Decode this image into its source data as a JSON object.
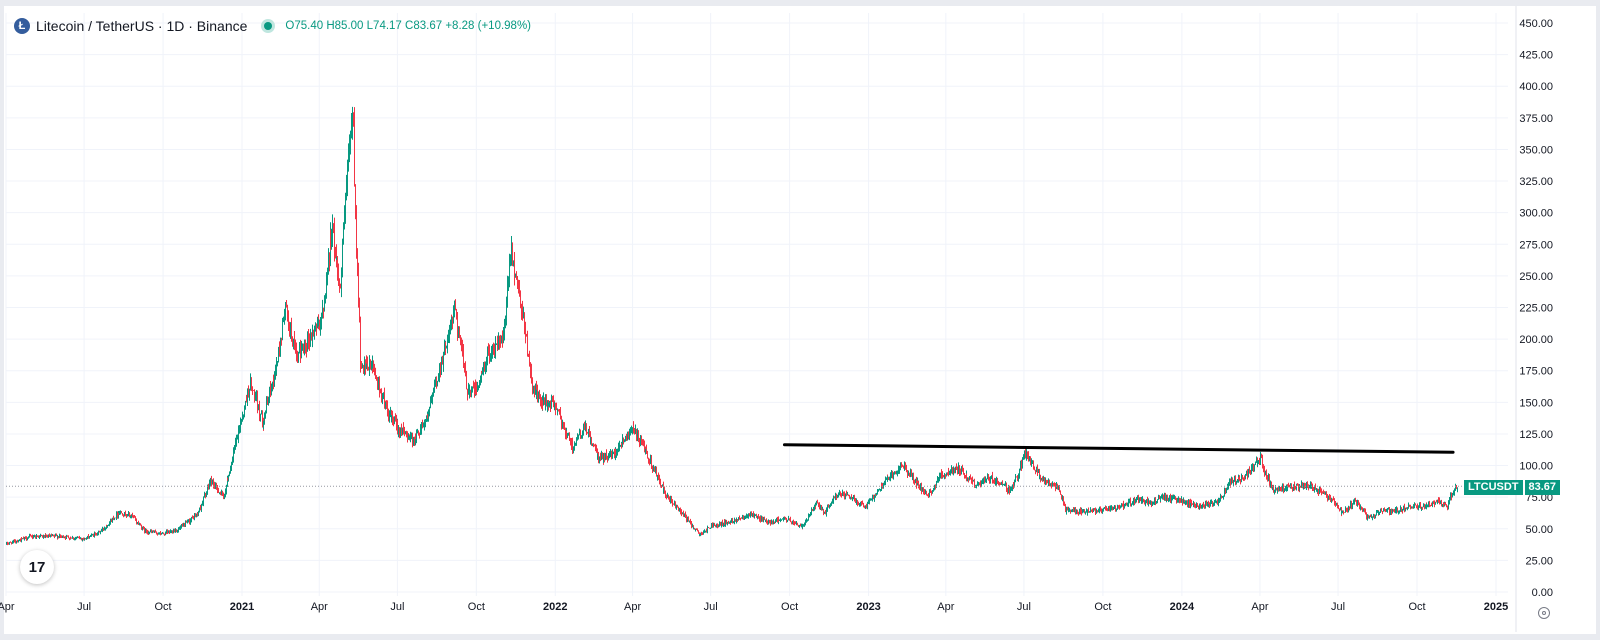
{
  "legend": {
    "symbol": "Litecoin / TetherUS · 1D · Binance",
    "logo_letter": "Ł",
    "ohlc": {
      "o_label": "O",
      "o": "75.40",
      "h_label": "H",
      "h": "85.00",
      "l_label": "L",
      "l": "74.17",
      "c_label": "C",
      "c": "83.67",
      "change": "+8.28 (+10.98%)"
    }
  },
  "price_tag": {
    "symbol": "LTCUSDT",
    "value": "83.67"
  },
  "colors": {
    "up": "#089981",
    "down": "#f23645",
    "grid": "#f0f3fa",
    "axis_text": "#131722",
    "trendline": "#000000"
  },
  "icons": {
    "tv_logo": "tradingview-logo-icon",
    "settings": "gear-icon"
  },
  "tv_logo_text": "17",
  "chart_data": {
    "type": "candlestick",
    "y_axis": {
      "min": 0,
      "max": 450,
      "ticks": [
        "0.00",
        "25.00",
        "50.00",
        "75.00",
        "100.00",
        "125.00",
        "150.00",
        "175.00",
        "200.00",
        "225.00",
        "250.00",
        "275.00",
        "300.00",
        "325.00",
        "350.00",
        "375.00",
        "400.00",
        "425.00",
        "450.00"
      ]
    },
    "x_axis": {
      "start": "2020-04-01",
      "end": "2025-01-15",
      "ticks": [
        {
          "label": "Apr",
          "date": "2020-04-01"
        },
        {
          "label": "Jul",
          "date": "2020-07-01"
        },
        {
          "label": "Oct",
          "date": "2020-10-01"
        },
        {
          "label": "2021",
          "date": "2021-01-01"
        },
        {
          "label": "Apr",
          "date": "2021-04-01"
        },
        {
          "label": "Jul",
          "date": "2021-07-01"
        },
        {
          "label": "Oct",
          "date": "2021-10-01"
        },
        {
          "label": "2022",
          "date": "2022-01-01"
        },
        {
          "label": "Apr",
          "date": "2022-04-01"
        },
        {
          "label": "Jul",
          "date": "2022-07-01"
        },
        {
          "label": "Oct",
          "date": "2022-10-01"
        },
        {
          "label": "2023",
          "date": "2023-01-01"
        },
        {
          "label": "Apr",
          "date": "2023-04-01"
        },
        {
          "label": "Jul",
          "date": "2023-07-01"
        },
        {
          "label": "Oct",
          "date": "2023-10-01"
        },
        {
          "label": "2024",
          "date": "2024-01-01"
        },
        {
          "label": "Apr",
          "date": "2024-04-01"
        },
        {
          "label": "Jul",
          "date": "2024-07-01"
        },
        {
          "label": "Oct",
          "date": "2024-10-01"
        },
        {
          "label": "2025",
          "date": "2025-01-01"
        }
      ]
    },
    "price_path": [
      [
        "2020-04-01",
        38
      ],
      [
        "2020-05-01",
        44
      ],
      [
        "2020-06-01",
        44
      ],
      [
        "2020-07-01",
        42
      ],
      [
        "2020-07-20",
        48
      ],
      [
        "2020-08-10",
        63
      ],
      [
        "2020-08-25",
        60
      ],
      [
        "2020-09-10",
        48
      ],
      [
        "2020-10-01",
        46
      ],
      [
        "2020-10-20",
        50
      ],
      [
        "2020-11-10",
        62
      ],
      [
        "2020-11-25",
        88
      ],
      [
        "2020-12-10",
        75
      ],
      [
        "2020-12-25",
        120
      ],
      [
        "2021-01-10",
        165
      ],
      [
        "2021-01-25",
        135
      ],
      [
        "2021-02-10",
        180
      ],
      [
        "2021-02-20",
        225
      ],
      [
        "2021-03-05",
        185
      ],
      [
        "2021-03-20",
        200
      ],
      [
        "2021-04-05",
        220
      ],
      [
        "2021-04-15",
        290
      ],
      [
        "2021-04-25",
        240
      ],
      [
        "2021-05-03",
        330
      ],
      [
        "2021-05-10",
        380
      ],
      [
        "2021-05-15",
        250
      ],
      [
        "2021-05-19",
        175
      ],
      [
        "2021-06-01",
        180
      ],
      [
        "2021-06-20",
        140
      ],
      [
        "2021-07-01",
        130
      ],
      [
        "2021-07-20",
        120
      ],
      [
        "2021-08-05",
        140
      ],
      [
        "2021-08-20",
        180
      ],
      [
        "2021-09-06",
        225
      ],
      [
        "2021-09-20",
        160
      ],
      [
        "2021-10-01",
        160
      ],
      [
        "2021-10-15",
        190
      ],
      [
        "2021-11-01",
        200
      ],
      [
        "2021-11-10",
        270
      ],
      [
        "2021-11-25",
        215
      ],
      [
        "2021-12-04",
        165
      ],
      [
        "2021-12-15",
        150
      ],
      [
        "2021-12-31",
        148
      ],
      [
        "2022-01-20",
        115
      ],
      [
        "2022-02-05",
        130
      ],
      [
        "2022-02-20",
        105
      ],
      [
        "2022-03-10",
        110
      ],
      [
        "2022-03-31",
        130
      ],
      [
        "2022-04-20",
        105
      ],
      [
        "2022-05-10",
        75
      ],
      [
        "2022-05-25",
        65
      ],
      [
        "2022-06-18",
        45
      ],
      [
        "2022-07-01",
        52
      ],
      [
        "2022-07-25",
        56
      ],
      [
        "2022-08-15",
        62
      ],
      [
        "2022-09-05",
        55
      ],
      [
        "2022-09-25",
        58
      ],
      [
        "2022-10-15",
        52
      ],
      [
        "2022-11-01",
        70
      ],
      [
        "2022-11-10",
        62
      ],
      [
        "2022-11-25",
        78
      ],
      [
        "2022-12-10",
        75
      ],
      [
        "2022-12-28",
        68
      ],
      [
        "2023-01-20",
        88
      ],
      [
        "2023-02-10",
        100
      ],
      [
        "2023-03-10",
        75
      ],
      [
        "2023-03-25",
        92
      ],
      [
        "2023-04-15",
        98
      ],
      [
        "2023-05-05",
        85
      ],
      [
        "2023-05-25",
        90
      ],
      [
        "2023-06-15",
        80
      ],
      [
        "2023-06-25",
        95
      ],
      [
        "2023-07-02",
        110
      ],
      [
        "2023-07-20",
        90
      ],
      [
        "2023-08-10",
        82
      ],
      [
        "2023-08-18",
        65
      ],
      [
        "2023-09-10",
        63
      ],
      [
        "2023-10-01",
        65
      ],
      [
        "2023-10-20",
        67
      ],
      [
        "2023-11-10",
        73
      ],
      [
        "2023-11-25",
        70
      ],
      [
        "2023-12-10",
        75
      ],
      [
        "2023-12-31",
        72
      ],
      [
        "2024-01-20",
        68
      ],
      [
        "2024-02-10",
        70
      ],
      [
        "2024-02-28",
        88
      ],
      [
        "2024-03-15",
        92
      ],
      [
        "2024-04-01",
        105
      ],
      [
        "2024-04-15",
        82
      ],
      [
        "2024-05-01",
        82
      ],
      [
        "2024-05-25",
        84
      ],
      [
        "2024-06-10",
        80
      ],
      [
        "2024-06-25",
        72
      ],
      [
        "2024-07-05",
        62
      ],
      [
        "2024-07-20",
        72
      ],
      [
        "2024-08-05",
        58
      ],
      [
        "2024-08-20",
        65
      ],
      [
        "2024-09-05",
        64
      ],
      [
        "2024-09-25",
        68
      ],
      [
        "2024-10-10",
        68
      ],
      [
        "2024-10-25",
        72
      ],
      [
        "2024-11-05",
        68
      ],
      [
        "2024-11-12",
        80
      ],
      [
        "2024-11-16",
        83.67
      ]
    ],
    "trendline": {
      "start": [
        "2022-09-25",
        116.5
      ],
      "end": [
        "2024-11-12",
        110.5
      ]
    },
    "last_price": 83.67
  }
}
